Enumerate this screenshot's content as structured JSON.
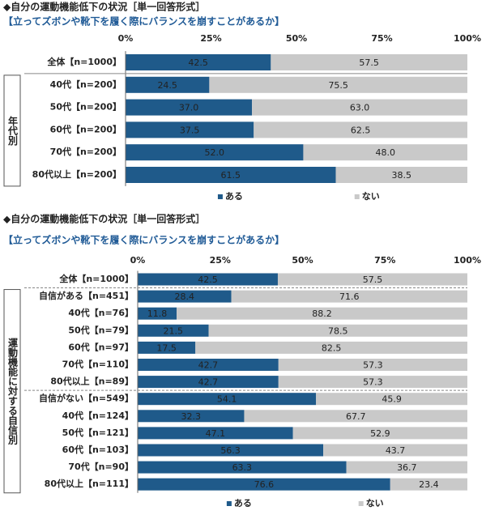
{
  "chart_data": [
    {
      "type": "stacked-bar-horizontal",
      "title": "◆自分の運動機能低下の状況［単一回答形式］",
      "subtitle": "【立ってズボンや靴下を履く際にバランスを崩すことがあるか】",
      "group_label": "年代別",
      "categories": [
        "全体【n=1000】",
        "40代【n=200】",
        "50代【n=200】",
        "60代【n=200】",
        "70代【n=200】",
        "80代以上【n=200】"
      ],
      "series": [
        {
          "name": "ある",
          "color": "#1f5a8a",
          "values": [
            42.5,
            24.5,
            37.0,
            37.5,
            52.0,
            61.5
          ],
          "value_labels": [
            "42.5",
            "24.5",
            "37.0",
            "37.5",
            "52.0",
            "61.5"
          ]
        },
        {
          "name": "ない",
          "color": "#c9c9c9",
          "values": [
            57.5,
            75.5,
            63.0,
            62.5,
            48.0,
            38.5
          ],
          "value_labels": [
            "57.5",
            "75.5",
            "63.0",
            "62.5",
            "48.0",
            "38.5"
          ]
        }
      ],
      "xlim": [
        0,
        100
      ],
      "xticks": [
        {
          "value": 0,
          "label": "0%"
        },
        {
          "value": 25,
          "label": "25%"
        },
        {
          "value": 50,
          "label": "50%"
        },
        {
          "value": 75,
          "label": "75%"
        },
        {
          "value": 100,
          "label": "100%"
        }
      ]
    },
    {
      "type": "stacked-bar-horizontal",
      "title": "◆自分の運動機能低下の状況［単一回答形式］",
      "subtitle": "【立ってズボンや靴下を履く際にバランスを崩すことがあるか】",
      "group_label": "運動機能に対する自信別",
      "categories": [
        "全体【n=1000】",
        "自信がある【n=451】",
        "40代【n=76】",
        "50代【n=79】",
        "60代【n=97】",
        "70代【n=110】",
        "80代以上【n=89】",
        "自信がない【n=549】",
        "40代【n=124】",
        "50代【n=121】",
        "60代【n=103】",
        "70代【n=90】",
        "80代以上【n=111】"
      ],
      "series": [
        {
          "name": "ある",
          "color": "#1f5a8a",
          "values": [
            42.5,
            28.4,
            11.8,
            21.5,
            17.5,
            42.7,
            42.7,
            54.1,
            32.3,
            47.1,
            56.3,
            63.3,
            76.6
          ],
          "value_labels": [
            "42.5",
            "28.4",
            "11.8",
            "21.5",
            "17.5",
            "42.7",
            "42.7",
            "54.1",
            "32.3",
            "47.1",
            "56.3",
            "63.3",
            "76.6"
          ]
        },
        {
          "name": "ない",
          "color": "#c9c9c9",
          "values": [
            57.5,
            71.6,
            88.2,
            78.5,
            82.5,
            57.3,
            57.3,
            45.9,
            67.7,
            52.9,
            43.7,
            36.7,
            23.4
          ],
          "value_labels": [
            "57.5",
            "71.6",
            "88.2",
            "78.5",
            "82.5",
            "57.3",
            "57.3",
            "45.9",
            "67.7",
            "52.9",
            "43.7",
            "36.7",
            "23.4"
          ]
        }
      ],
      "xlim": [
        0,
        100
      ],
      "xticks": [
        {
          "value": 0,
          "label": "0%"
        },
        {
          "value": 25,
          "label": "25%"
        },
        {
          "value": 50,
          "label": "50%"
        },
        {
          "value": 75,
          "label": "75%"
        },
        {
          "value": 100,
          "label": "100%"
        }
      ]
    }
  ]
}
